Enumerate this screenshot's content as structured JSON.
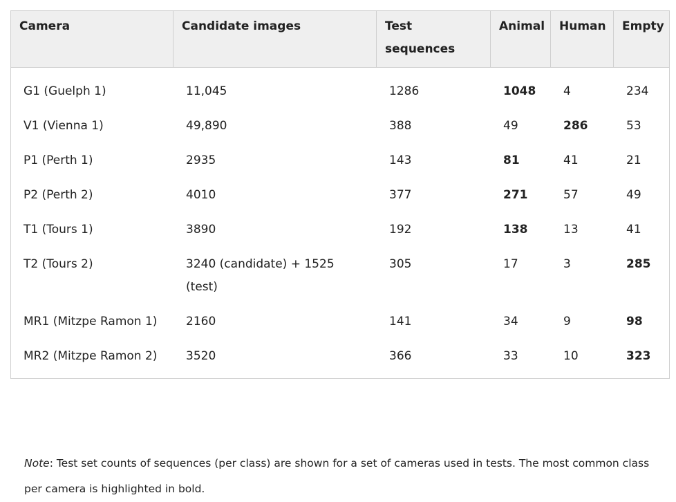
{
  "table": {
    "headers": [
      "Camera",
      "Candidate images",
      "Test sequences",
      "Animal",
      "Human",
      "Empty"
    ],
    "rows": [
      {
        "camera": "G1 (Guelph 1)",
        "candidate": "11,045",
        "test": "1286",
        "animal": "1048",
        "human": "4",
        "empty": "234",
        "bold": "animal"
      },
      {
        "camera": "V1 (Vienna 1)",
        "candidate": "49,890",
        "test": "388",
        "animal": "49",
        "human": "286",
        "empty": "53",
        "bold": "human"
      },
      {
        "camera": "P1 (Perth 1)",
        "candidate": "2935",
        "test": "143",
        "animal": "81",
        "human": "41",
        "empty": "21",
        "bold": "animal"
      },
      {
        "camera": "P2 (Perth 2)",
        "candidate": "4010",
        "test": "377",
        "animal": "271",
        "human": "57",
        "empty": "49",
        "bold": "animal"
      },
      {
        "camera": "T1 (Tours 1)",
        "candidate": "3890",
        "test": "192",
        "animal": "138",
        "human": "13",
        "empty": "41",
        "bold": "animal"
      },
      {
        "camera": "T2 (Tours 2)",
        "candidate": "3240 (candidate) + 1525 (test)",
        "test": "305",
        "animal": "17",
        "human": "3",
        "empty": "285",
        "bold": "empty"
      },
      {
        "camera": "MR1 (Mitzpe Ramon 1)",
        "candidate": "2160",
        "test": "141",
        "animal": "34",
        "human": "9",
        "empty": "98",
        "bold": "empty"
      },
      {
        "camera": "MR2 (Mitzpe Ramon 2)",
        "candidate": "3520",
        "test": "366",
        "animal": "33",
        "human": "10",
        "empty": "323",
        "bold": "empty"
      }
    ]
  },
  "note": {
    "label": "Note",
    "text": ": Test set counts of sequences (per class) are shown for a set of cameras used in tests. The most common class per camera is highlighted in bold."
  },
  "colors": {
    "header_bg": "#efefef",
    "border": "#cfcfcf"
  }
}
